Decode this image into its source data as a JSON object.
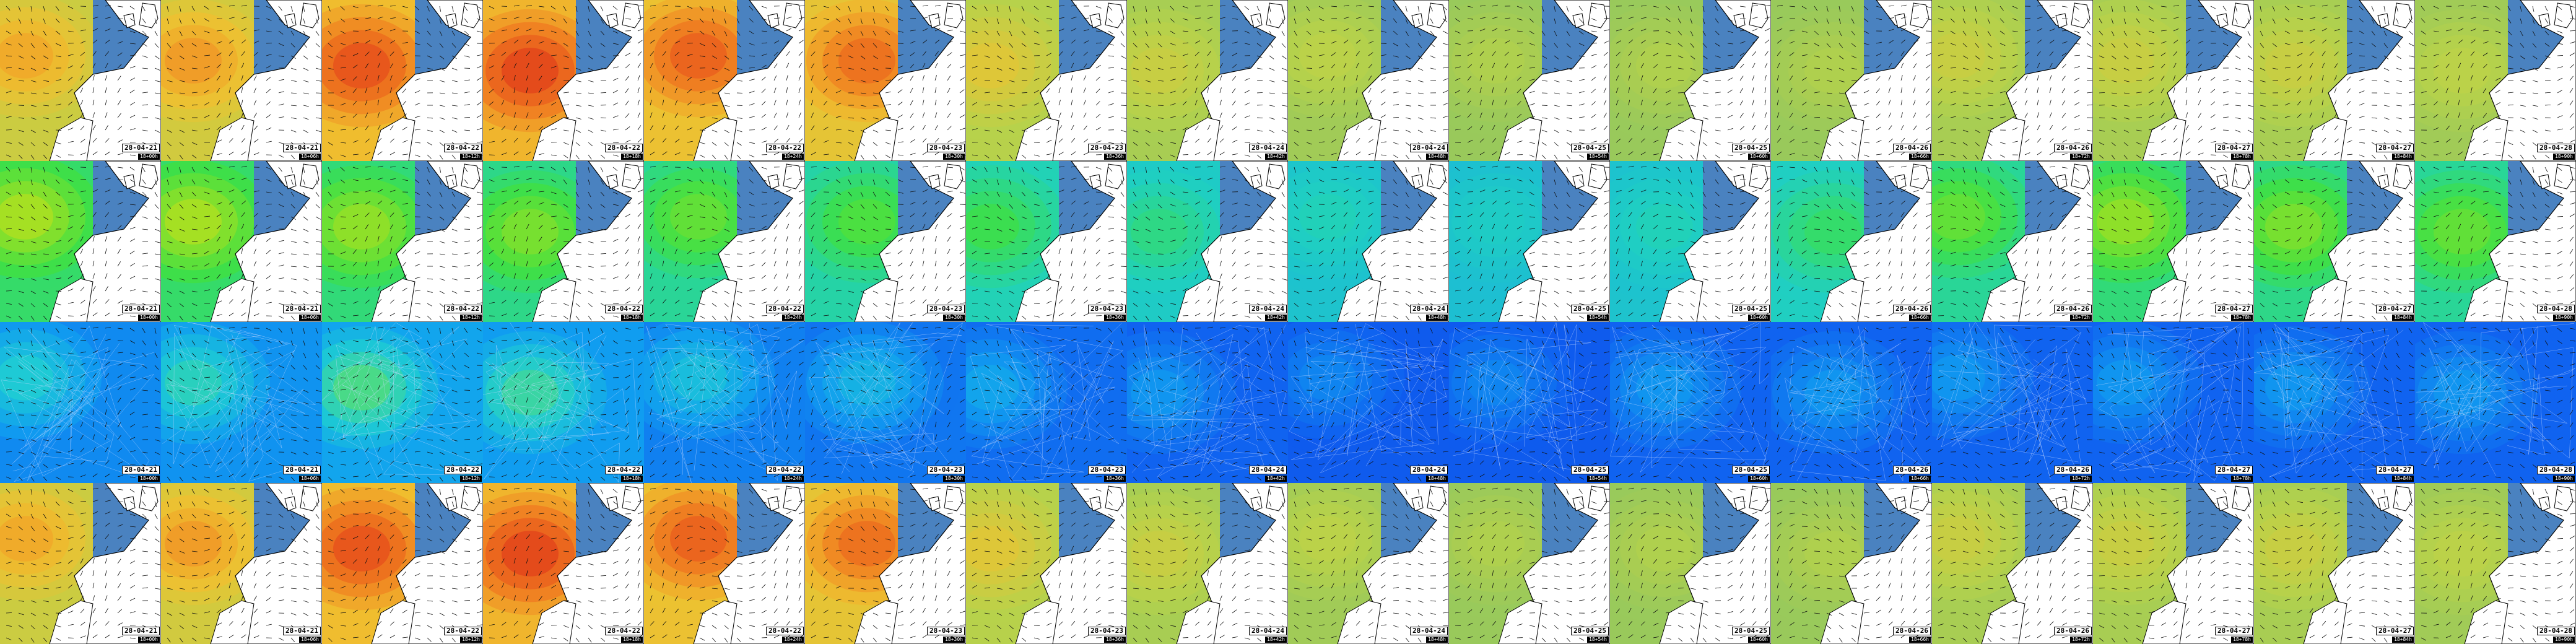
{
  "rows": [
    {
      "kind": "regional",
      "palette": [
        "#7cc06a",
        "#b9d24a",
        "#f0c030",
        "#f07a20",
        "#e03a1a"
      ],
      "land_color": "#ffffff",
      "sea_color": "#4a82c0",
      "tiles": [
        {
          "date": "28-04-21",
          "run": "18+00h",
          "level": 0.55
        },
        {
          "date": "28-04-21",
          "run": "18+06h",
          "level": 0.6
        },
        {
          "date": "28-04-22",
          "run": "18+12h",
          "level": 0.85
        },
        {
          "date": "28-04-22",
          "run": "18+18h",
          "level": 0.9
        },
        {
          "date": "28-04-22",
          "run": "18+24h",
          "level": 0.8
        },
        {
          "date": "28-04-23",
          "run": "18+30h",
          "level": 0.75
        },
        {
          "date": "28-04-23",
          "run": "18+36h",
          "level": 0.4
        },
        {
          "date": "28-04-24",
          "run": "18+42h",
          "level": 0.3
        },
        {
          "date": "28-04-24",
          "run": "18+48h",
          "level": 0.25
        },
        {
          "date": "28-04-25",
          "run": "18+54h",
          "level": 0.2
        },
        {
          "date": "28-04-25",
          "run": "18+60h",
          "level": 0.2
        },
        {
          "date": "28-04-26",
          "run": "18+66h",
          "level": 0.2
        },
        {
          "date": "28-04-26",
          "run": "18+72h",
          "level": 0.3
        },
        {
          "date": "28-04-27",
          "run": "18+78h",
          "level": 0.3
        },
        {
          "date": "28-04-27",
          "run": "18+84h",
          "level": 0.3
        },
        {
          "date": "28-04-28",
          "run": "18+90h",
          "level": 0.25
        }
      ]
    },
    {
      "kind": "regional",
      "palette": [
        "#1ab0e0",
        "#20d0c0",
        "#40e040",
        "#b0e020",
        "#f0d020"
      ],
      "land_color": "#ffffff",
      "sea_color": "#4a82c0",
      "tiles": [
        {
          "date": "28-04-21",
          "run": "18+00h",
          "level": 0.7
        },
        {
          "date": "28-04-21",
          "run": "18+06h",
          "level": 0.7
        },
        {
          "date": "28-04-22",
          "run": "18+12h",
          "level": 0.65
        },
        {
          "date": "28-04-22",
          "run": "18+18h",
          "level": 0.6
        },
        {
          "date": "28-04-22",
          "run": "18+24h",
          "level": 0.55
        },
        {
          "date": "28-04-23",
          "run": "18+30h",
          "level": 0.5
        },
        {
          "date": "28-04-23",
          "run": "18+36h",
          "level": 0.45
        },
        {
          "date": "28-04-24",
          "run": "18+42h",
          "level": 0.35
        },
        {
          "date": "28-04-24",
          "run": "18+48h",
          "level": 0.25
        },
        {
          "date": "28-04-25",
          "run": "18+54h",
          "level": 0.2
        },
        {
          "date": "28-04-25",
          "run": "18+60h",
          "level": 0.25
        },
        {
          "date": "28-04-26",
          "run": "18+66h",
          "level": 0.4
        },
        {
          "date": "28-04-26",
          "run": "18+72h",
          "level": 0.55
        },
        {
          "date": "28-04-27",
          "run": "18+78h",
          "level": 0.65
        },
        {
          "date": "28-04-27",
          "run": "18+84h",
          "level": 0.6
        },
        {
          "date": "28-04-28",
          "run": "18+90h",
          "level": 0.55
        }
      ]
    },
    {
      "kind": "wide",
      "palette": [
        "#0a2ad0",
        "#1060f0",
        "#10a0f0",
        "#20d0d0",
        "#60e060",
        "#d0e020"
      ],
      "land_color": "#0a3ac0",
      "sea_color": "#0a3ac0",
      "tiles": [
        {
          "date": "28-04-21",
          "run": "18+00h",
          "level": 0.55
        },
        {
          "date": "28-04-21",
          "run": "18+06h",
          "level": 0.6
        },
        {
          "date": "28-04-22",
          "run": "18+12h",
          "level": 0.7
        },
        {
          "date": "28-04-22",
          "run": "18+18h",
          "level": 0.65
        },
        {
          "date": "28-04-22",
          "run": "18+24h",
          "level": 0.5
        },
        {
          "date": "28-04-23",
          "run": "18+30h",
          "level": 0.45
        },
        {
          "date": "28-04-23",
          "run": "18+36h",
          "level": 0.4
        },
        {
          "date": "28-04-24",
          "run": "18+42h",
          "level": 0.35
        },
        {
          "date": "28-04-24",
          "run": "18+48h",
          "level": 0.3
        },
        {
          "date": "28-04-25",
          "run": "18+54h",
          "level": 0.3
        },
        {
          "date": "28-04-25",
          "run": "18+60h",
          "level": 0.35
        },
        {
          "date": "28-04-26",
          "run": "18+66h",
          "level": 0.35
        },
        {
          "date": "28-04-26",
          "run": "18+72h",
          "level": 0.35
        },
        {
          "date": "28-04-27",
          "run": "18+78h",
          "level": 0.35
        },
        {
          "date": "28-04-27",
          "run": "18+84h",
          "level": 0.35
        },
        {
          "date": "28-04-28",
          "run": "18+90h",
          "level": 0.35
        }
      ]
    },
    {
      "kind": "regional",
      "palette": [
        "#7cc06a",
        "#b9d24a",
        "#f0c030",
        "#f07a20",
        "#e03a1a"
      ],
      "land_color": "#ffffff",
      "sea_color": "#4a82c0",
      "tiles": [
        {
          "date": "28-04-21",
          "run": "18+00h",
          "level": 0.55
        },
        {
          "date": "28-04-21",
          "run": "18+06h",
          "level": 0.6
        },
        {
          "date": "28-04-22",
          "run": "18+12h",
          "level": 0.85
        },
        {
          "date": "28-04-22",
          "run": "18+18h",
          "level": 0.9
        },
        {
          "date": "28-04-22",
          "run": "18+24h",
          "level": 0.8
        },
        {
          "date": "28-04-23",
          "run": "18+30h",
          "level": 0.75
        },
        {
          "date": "28-04-23",
          "run": "18+36h",
          "level": 0.4
        },
        {
          "date": "28-04-24",
          "run": "18+42h",
          "level": 0.3
        },
        {
          "date": "28-04-24",
          "run": "18+48h",
          "level": 0.25
        },
        {
          "date": "28-04-25",
          "run": "18+54h",
          "level": 0.2
        },
        {
          "date": "28-04-25",
          "run": "18+60h",
          "level": 0.2
        },
        {
          "date": "28-04-26",
          "run": "18+66h",
          "level": 0.2
        },
        {
          "date": "28-04-26",
          "run": "18+72h",
          "level": 0.3
        },
        {
          "date": "28-04-27",
          "run": "18+78h",
          "level": 0.3
        },
        {
          "date": "28-04-27",
          "run": "18+84h",
          "level": 0.3
        },
        {
          "date": "28-04-28",
          "run": "18+90h",
          "level": 0.25
        }
      ]
    }
  ]
}
